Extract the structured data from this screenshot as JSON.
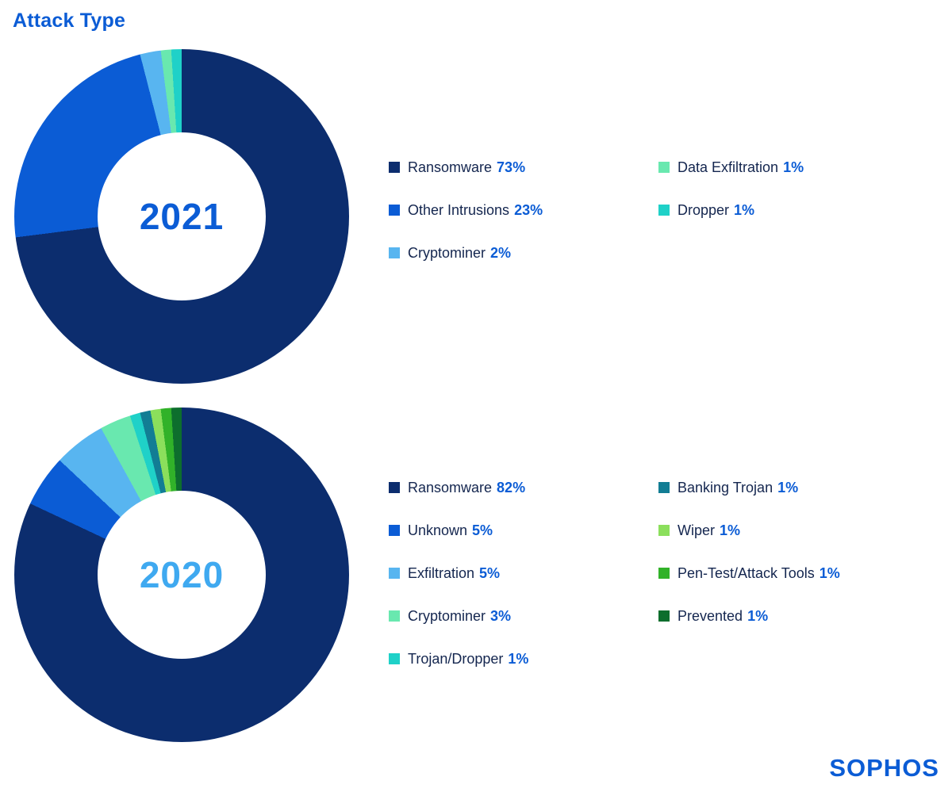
{
  "page": {
    "title": "Attack Type",
    "brand": "SOPHOS",
    "accent_color": "#0b5cd5",
    "background_color": "#ffffff"
  },
  "chart_data": [
    {
      "type": "pie",
      "donut": true,
      "center_label": "2021",
      "center_label_color": "#0b5cd5",
      "start_angle_deg": 0,
      "direction": "clockwise",
      "unit": "%",
      "legend_position": "right",
      "series": [
        {
          "label": "Ransomware",
          "value": 73,
          "color": "#0c2d6e"
        },
        {
          "label": "Other Intrusions",
          "value": 23,
          "color": "#0b5cd5"
        },
        {
          "label": "Cryptominer",
          "value": 2,
          "color": "#58b5f0"
        },
        {
          "label": "Data Exfiltration",
          "value": 1,
          "color": "#69e8af"
        },
        {
          "label": "Dropper",
          "value": 1,
          "color": "#1fd1c8"
        }
      ],
      "legend_columns": [
        [
          0,
          1,
          2
        ],
        [
          3,
          4
        ]
      ]
    },
    {
      "type": "pie",
      "donut": true,
      "center_label": "2020",
      "center_label_color": "#3fa9f0",
      "start_angle_deg": 0,
      "direction": "clockwise",
      "unit": "%",
      "legend_position": "right",
      "series": [
        {
          "label": "Ransomware",
          "value": 82,
          "color": "#0c2d6e"
        },
        {
          "label": "Unknown",
          "value": 5,
          "color": "#0b5cd5"
        },
        {
          "label": "Exfiltration",
          "value": 5,
          "color": "#58b5f0"
        },
        {
          "label": "Cryptominer",
          "value": 3,
          "color": "#69e8af"
        },
        {
          "label": "Trojan/Dropper",
          "value": 1,
          "color": "#1fd1c8"
        },
        {
          "label": "Banking Trojan",
          "value": 1,
          "color": "#127d94"
        },
        {
          "label": "Wiper",
          "value": 1,
          "color": "#8bdf5c"
        },
        {
          "label": "Pen-Test/Attack Tools",
          "value": 1,
          "color": "#31b229"
        },
        {
          "label": "Prevented",
          "value": 1,
          "color": "#0d6e2d"
        }
      ],
      "legend_columns": [
        [
          0,
          1,
          2,
          3,
          4
        ],
        [
          5,
          6,
          7,
          8
        ]
      ]
    }
  ]
}
